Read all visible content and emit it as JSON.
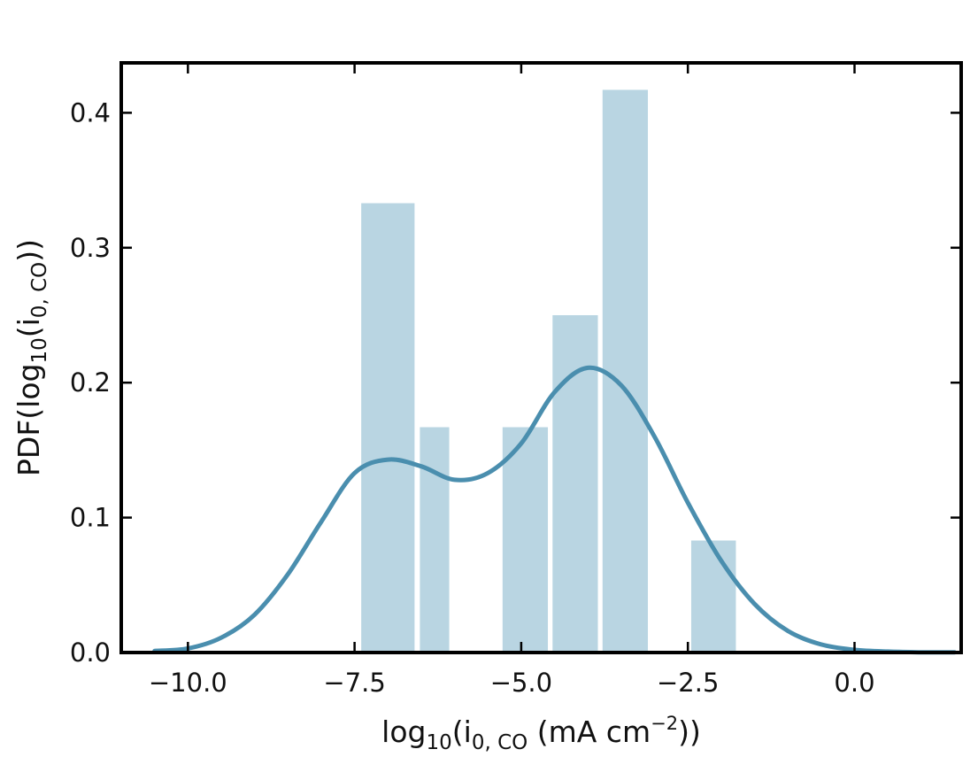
{
  "chart_data": {
    "type": "bar",
    "xlabel_parts": {
      "pre": "log",
      "sub10": "10",
      "mid": "(i",
      "sub0co": "0, CO",
      "post": " (mA cm",
      "sup": "−2",
      "end": "))"
    },
    "ylabel_parts": {
      "pre": "PDF(log",
      "sub10": "10",
      "mid": "(i",
      "sub0co": "0, CO",
      "end": "))"
    },
    "xlim": [
      -11.0,
      1.6
    ],
    "ylim": [
      0.0,
      0.437
    ],
    "x_ticks": [
      -10.0,
      -7.5,
      -5.0,
      -2.5,
      0.0
    ],
    "x_tick_labels": [
      "−10.0",
      "−7.5",
      "−5.0",
      "−2.5",
      "0.0"
    ],
    "y_ticks": [
      0.0,
      0.1,
      0.2,
      0.3,
      0.4
    ],
    "y_tick_labels": [
      "0.0",
      "0.1",
      "0.2",
      "0.3",
      "0.4"
    ],
    "histogram": {
      "bin_width": 0.875,
      "bars": [
        {
          "left": -7.4,
          "right": -6.6,
          "density": 0.333
        },
        {
          "left": -6.52,
          "right": -6.08,
          "density": 0.167
        },
        {
          "left": -5.28,
          "right": -4.6,
          "density": 0.167
        },
        {
          "left": -4.53,
          "right": -3.85,
          "density": 0.25
        },
        {
          "left": -3.78,
          "right": -3.1,
          "density": 0.417
        },
        {
          "left": -2.45,
          "right": -1.78,
          "density": 0.083
        }
      ],
      "color": "#b9d5e2"
    },
    "kde": {
      "color": "#4a8eae",
      "x": [
        -10.5,
        -10.0,
        -9.5,
        -9.0,
        -8.5,
        -8.0,
        -7.5,
        -7.0,
        -6.5,
        -6.0,
        -5.5,
        -5.0,
        -4.5,
        -4.0,
        -3.5,
        -3.0,
        -2.5,
        -2.0,
        -1.5,
        -1.0,
        -0.5,
        0.0,
        0.5,
        1.0,
        1.5
      ],
      "y": [
        0.0012,
        0.003,
        0.011,
        0.028,
        0.058,
        0.097,
        0.133,
        0.143,
        0.138,
        0.128,
        0.133,
        0.155,
        0.193,
        0.211,
        0.198,
        0.16,
        0.111,
        0.068,
        0.036,
        0.016,
        0.006,
        0.002,
        0.0007,
        0.0002,
        0.0001
      ]
    }
  }
}
